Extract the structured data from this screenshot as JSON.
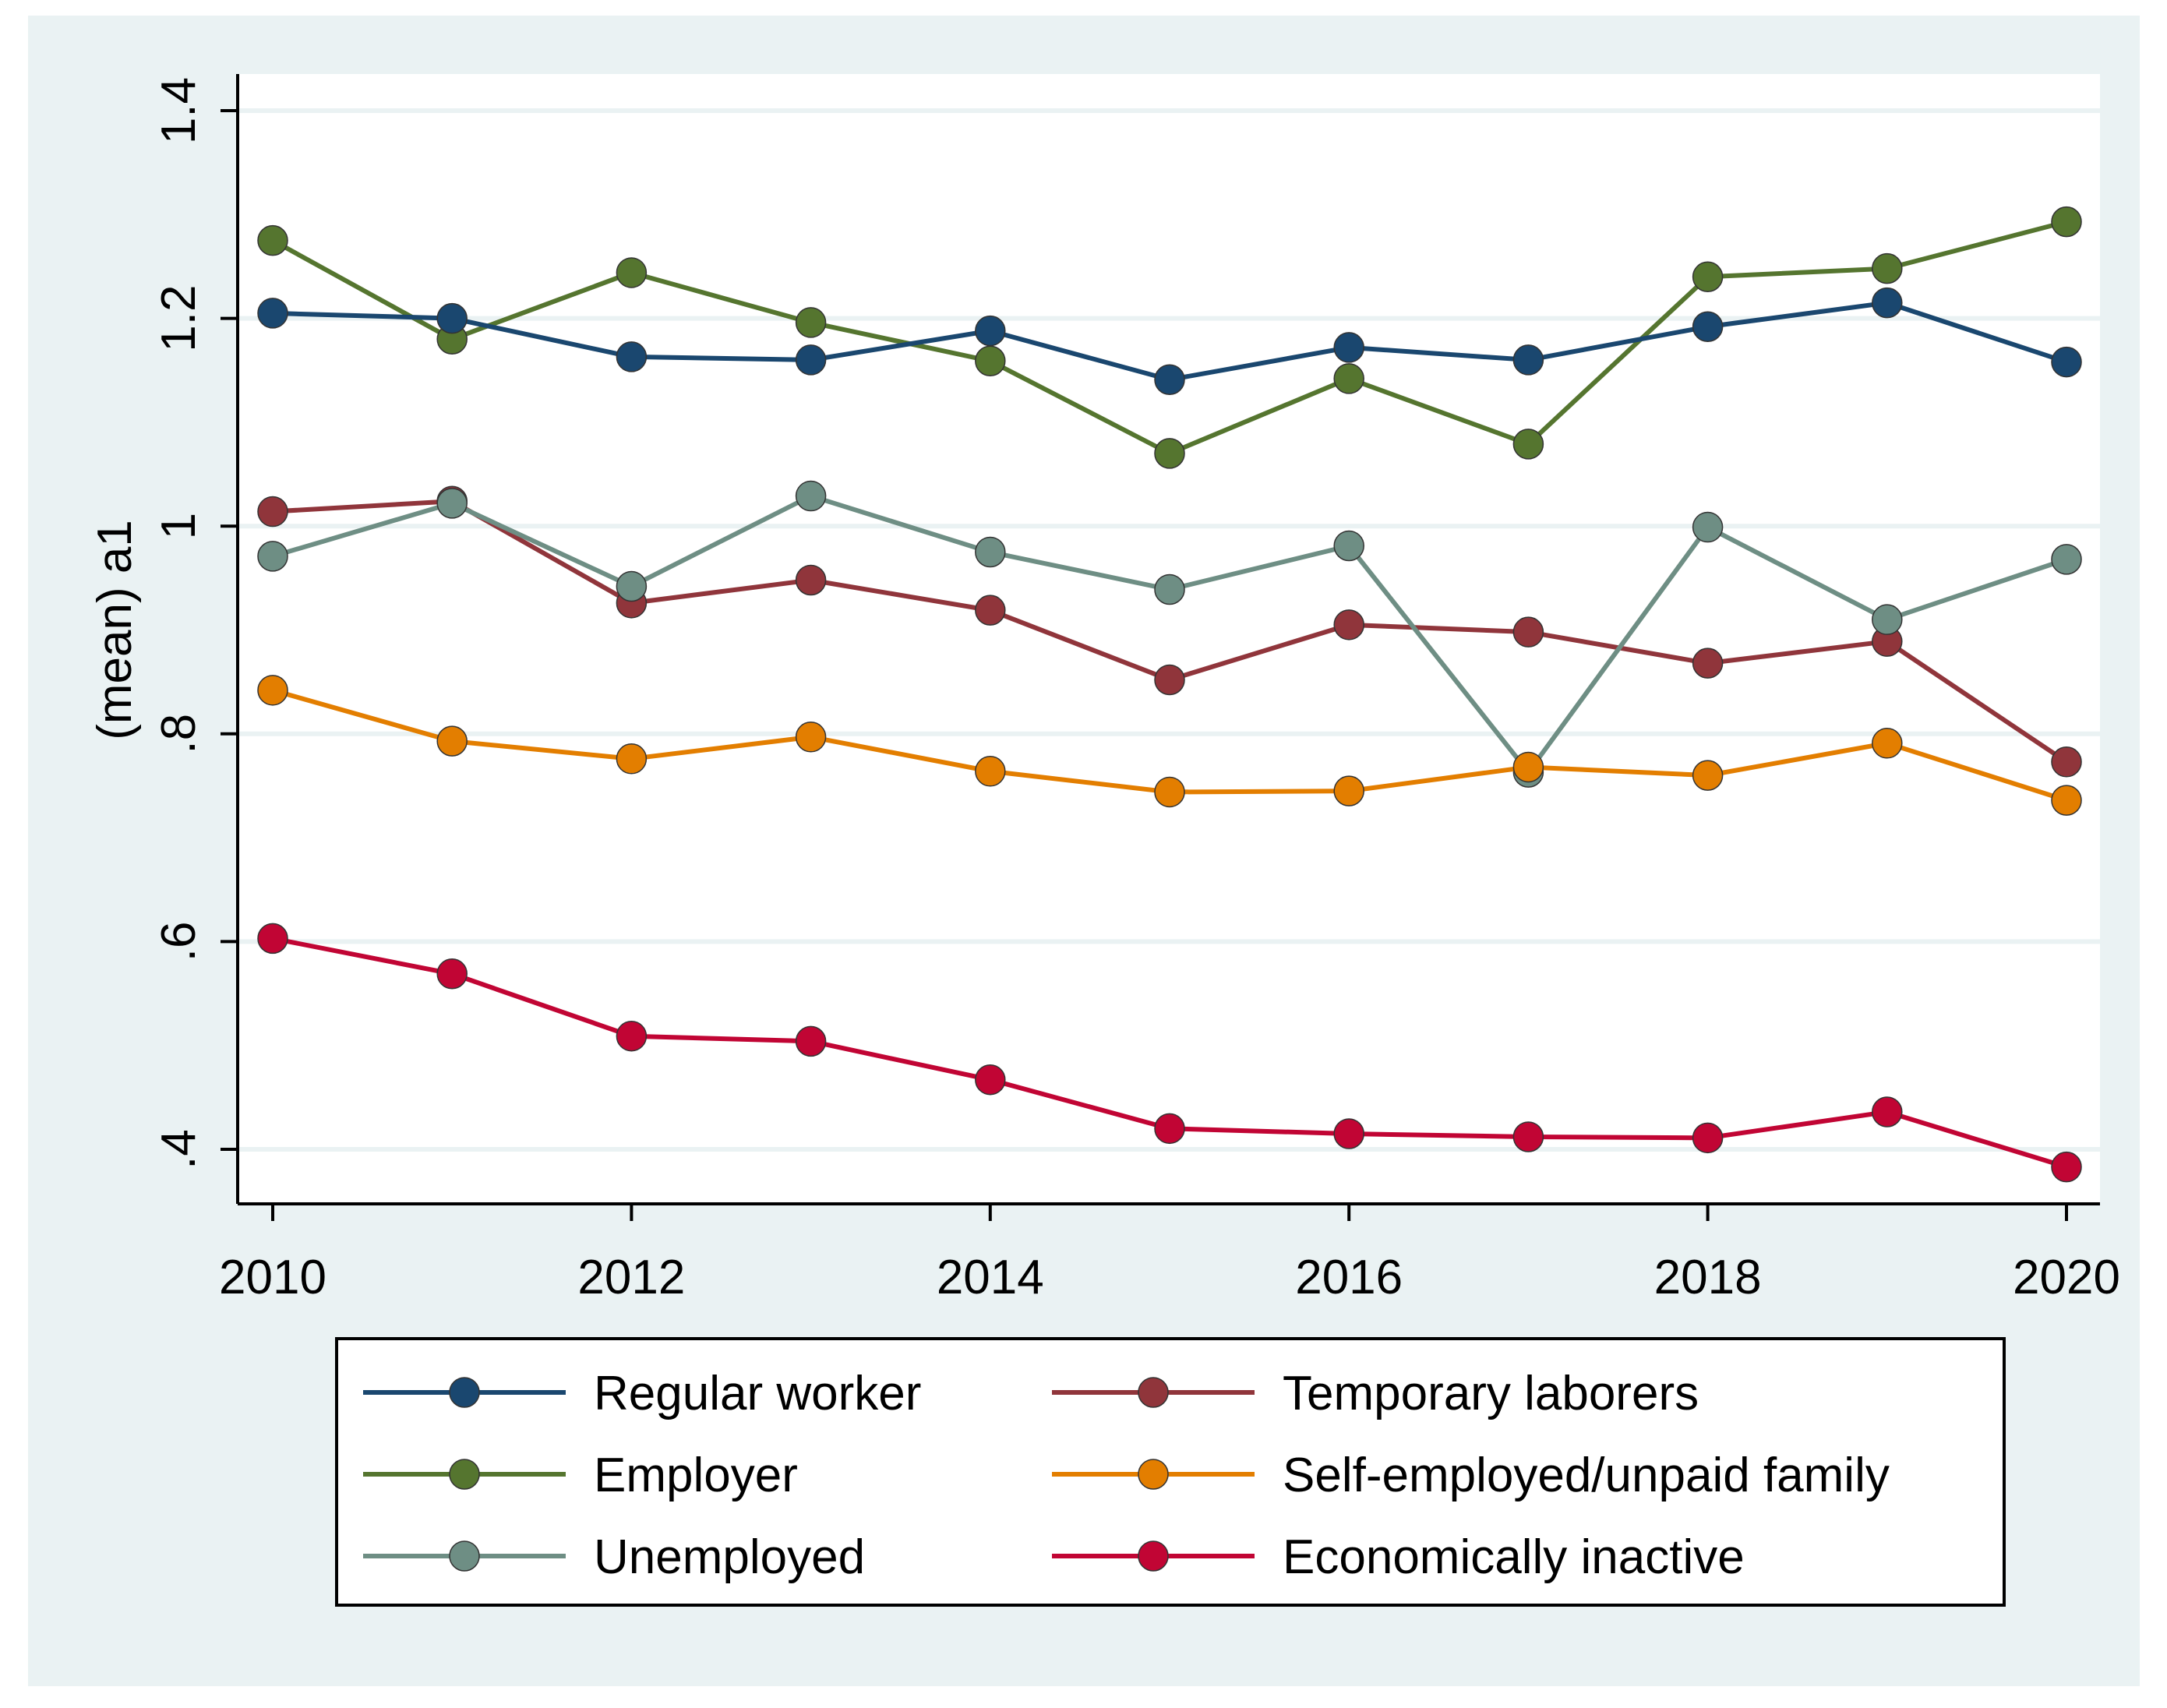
{
  "chart_data": {
    "type": "line",
    "title": "",
    "xlabel": "",
    "ylabel": "(mean) a1",
    "x": [
      2010,
      2011,
      2012,
      2013,
      2014,
      2015,
      2016,
      2017,
      2018,
      2019,
      2020
    ],
    "xticks": [
      2010,
      2012,
      2014,
      2016,
      2018,
      2020
    ],
    "xtick_labels": [
      "2010",
      "2012",
      "2014",
      "2016",
      "2018",
      "2020"
    ],
    "yticks": [
      0.4,
      0.6,
      0.8,
      1.0,
      1.2,
      1.4
    ],
    "ytick_labels": [
      ".4",
      ".6",
      ".8",
      "1",
      "1.2",
      "1.4"
    ],
    "xlim": [
      2010,
      2020
    ],
    "ylim": [
      0.35,
      1.44
    ],
    "grid": true,
    "legend_position": "bottom",
    "series": [
      {
        "name": "Regular worker",
        "color": "#1a476f",
        "values": [
          1.205,
          1.2,
          1.163,
          1.16,
          1.188,
          1.141,
          1.172,
          1.16,
          1.192,
          1.215,
          1.158
        ]
      },
      {
        "name": "Temporary laborers",
        "color": "#90353b",
        "values": [
          1.014,
          1.024,
          0.926,
          0.948,
          0.919,
          0.852,
          0.905,
          0.898,
          0.868,
          0.889,
          0.773
        ]
      },
      {
        "name": "Employer",
        "color": "#55752f",
        "values": [
          1.275,
          1.18,
          1.244,
          1.196,
          1.159,
          1.07,
          1.142,
          1.079,
          1.24,
          1.248,
          1.293
        ]
      },
      {
        "name": "Self-employed/unpaid family",
        "color": "#e37e00",
        "values": [
          0.842,
          0.793,
          0.776,
          0.797,
          0.764,
          0.744,
          0.745,
          0.768,
          0.76,
          0.791,
          0.736
        ]
      },
      {
        "name": "Unemployed",
        "color": "#6e8e84",
        "values": [
          0.971,
          1.022,
          0.942,
          1.029,
          0.975,
          0.939,
          0.981,
          0.763,
          0.999,
          0.91,
          0.968
        ]
      },
      {
        "name": "Economically inactive",
        "color": "#c10534",
        "values": [
          0.603,
          0.569,
          0.509,
          0.504,
          0.467,
          0.42,
          0.415,
          0.412,
          0.411,
          0.436,
          0.383
        ]
      }
    ]
  },
  "colors": {
    "outer_background": "#eaf2f3",
    "plot_background": "#ffffff",
    "grid": "#eaf2f3"
  }
}
